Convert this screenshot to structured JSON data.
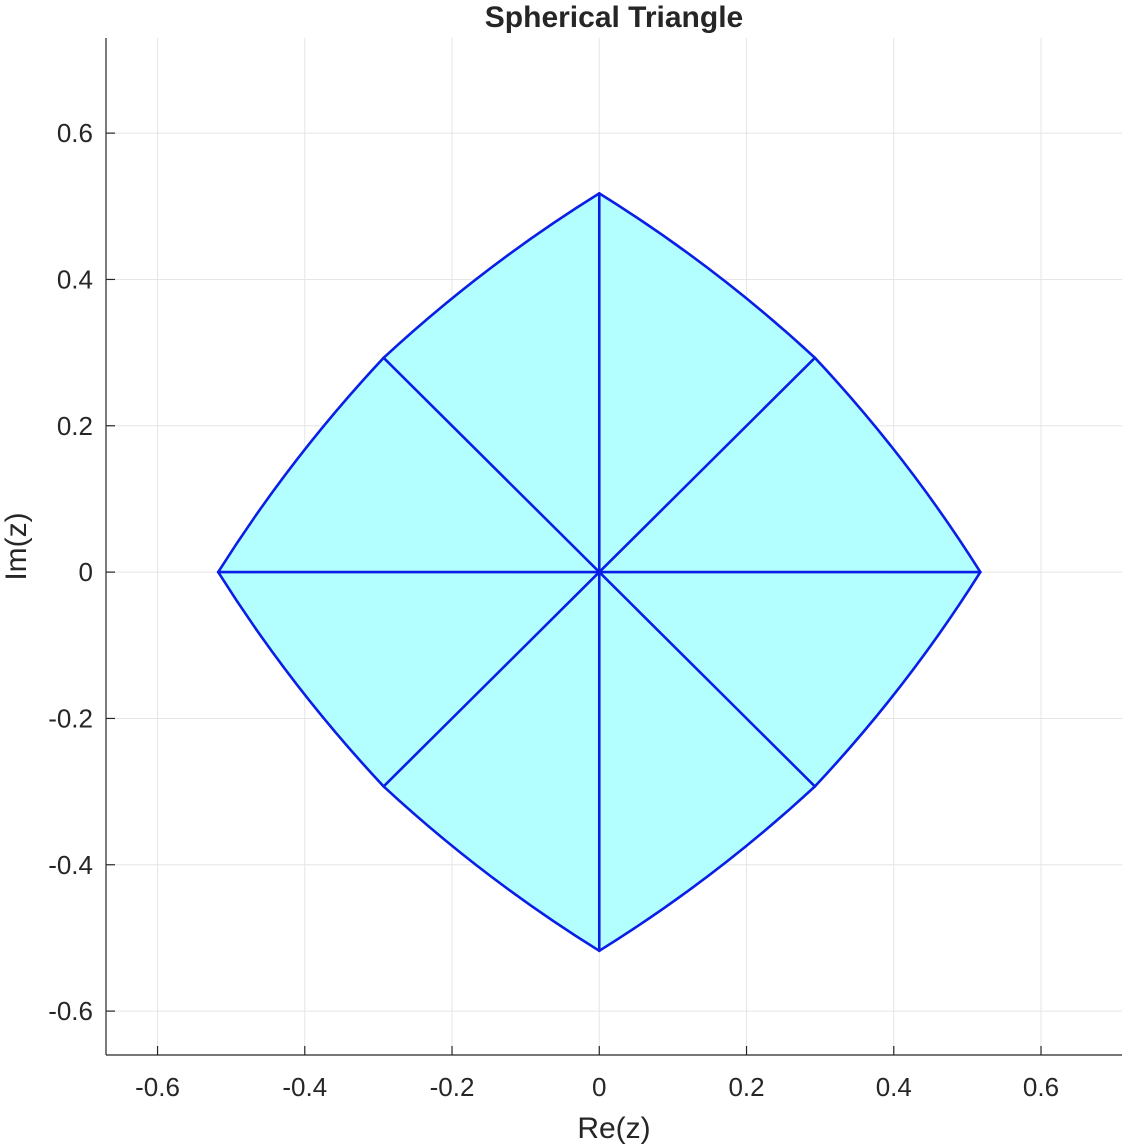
{
  "chart_data": {
    "type": "area",
    "title": "Spherical Triangle",
    "xlabel": "Re(z)",
    "ylabel": "Im(z)",
    "xlim": [
      -0.67,
      0.71
    ],
    "ylim": [
      -0.66,
      0.73
    ],
    "xticks": [
      -0.6,
      -0.4,
      -0.2,
      0,
      0.2,
      0.4,
      0.6
    ],
    "xtick_labels": [
      "-0.6",
      "-0.4",
      "-0.2",
      "0",
      "0.2",
      "0.4",
      "0.6"
    ],
    "yticks": [
      -0.6,
      -0.4,
      -0.2,
      0,
      0.2,
      0.4,
      0.6
    ],
    "ytick_labels": [
      "-0.6",
      "-0.4",
      "-0.2",
      "0",
      "0.2",
      "0.4",
      "0.6"
    ],
    "grid": true,
    "colors": {
      "fill": "#b3ffff",
      "edge": "#0a1ee6",
      "grid": "#e5e5e5",
      "axis": "#262626"
    },
    "center": [
      0,
      0
    ],
    "vertices": [
      [
        0.5176,
        0
      ],
      [
        0.2929,
        0.2929
      ],
      [
        0,
        0.5176
      ],
      [
        -0.2929,
        0.2929
      ],
      [
        -0.5176,
        0
      ],
      [
        -0.2929,
        -0.2929
      ],
      [
        0,
        -0.5176
      ],
      [
        0.2929,
        -0.2929
      ]
    ],
    "edge_circle": {
      "radius": 1.9319,
      "center_distance": 2.0
    }
  }
}
